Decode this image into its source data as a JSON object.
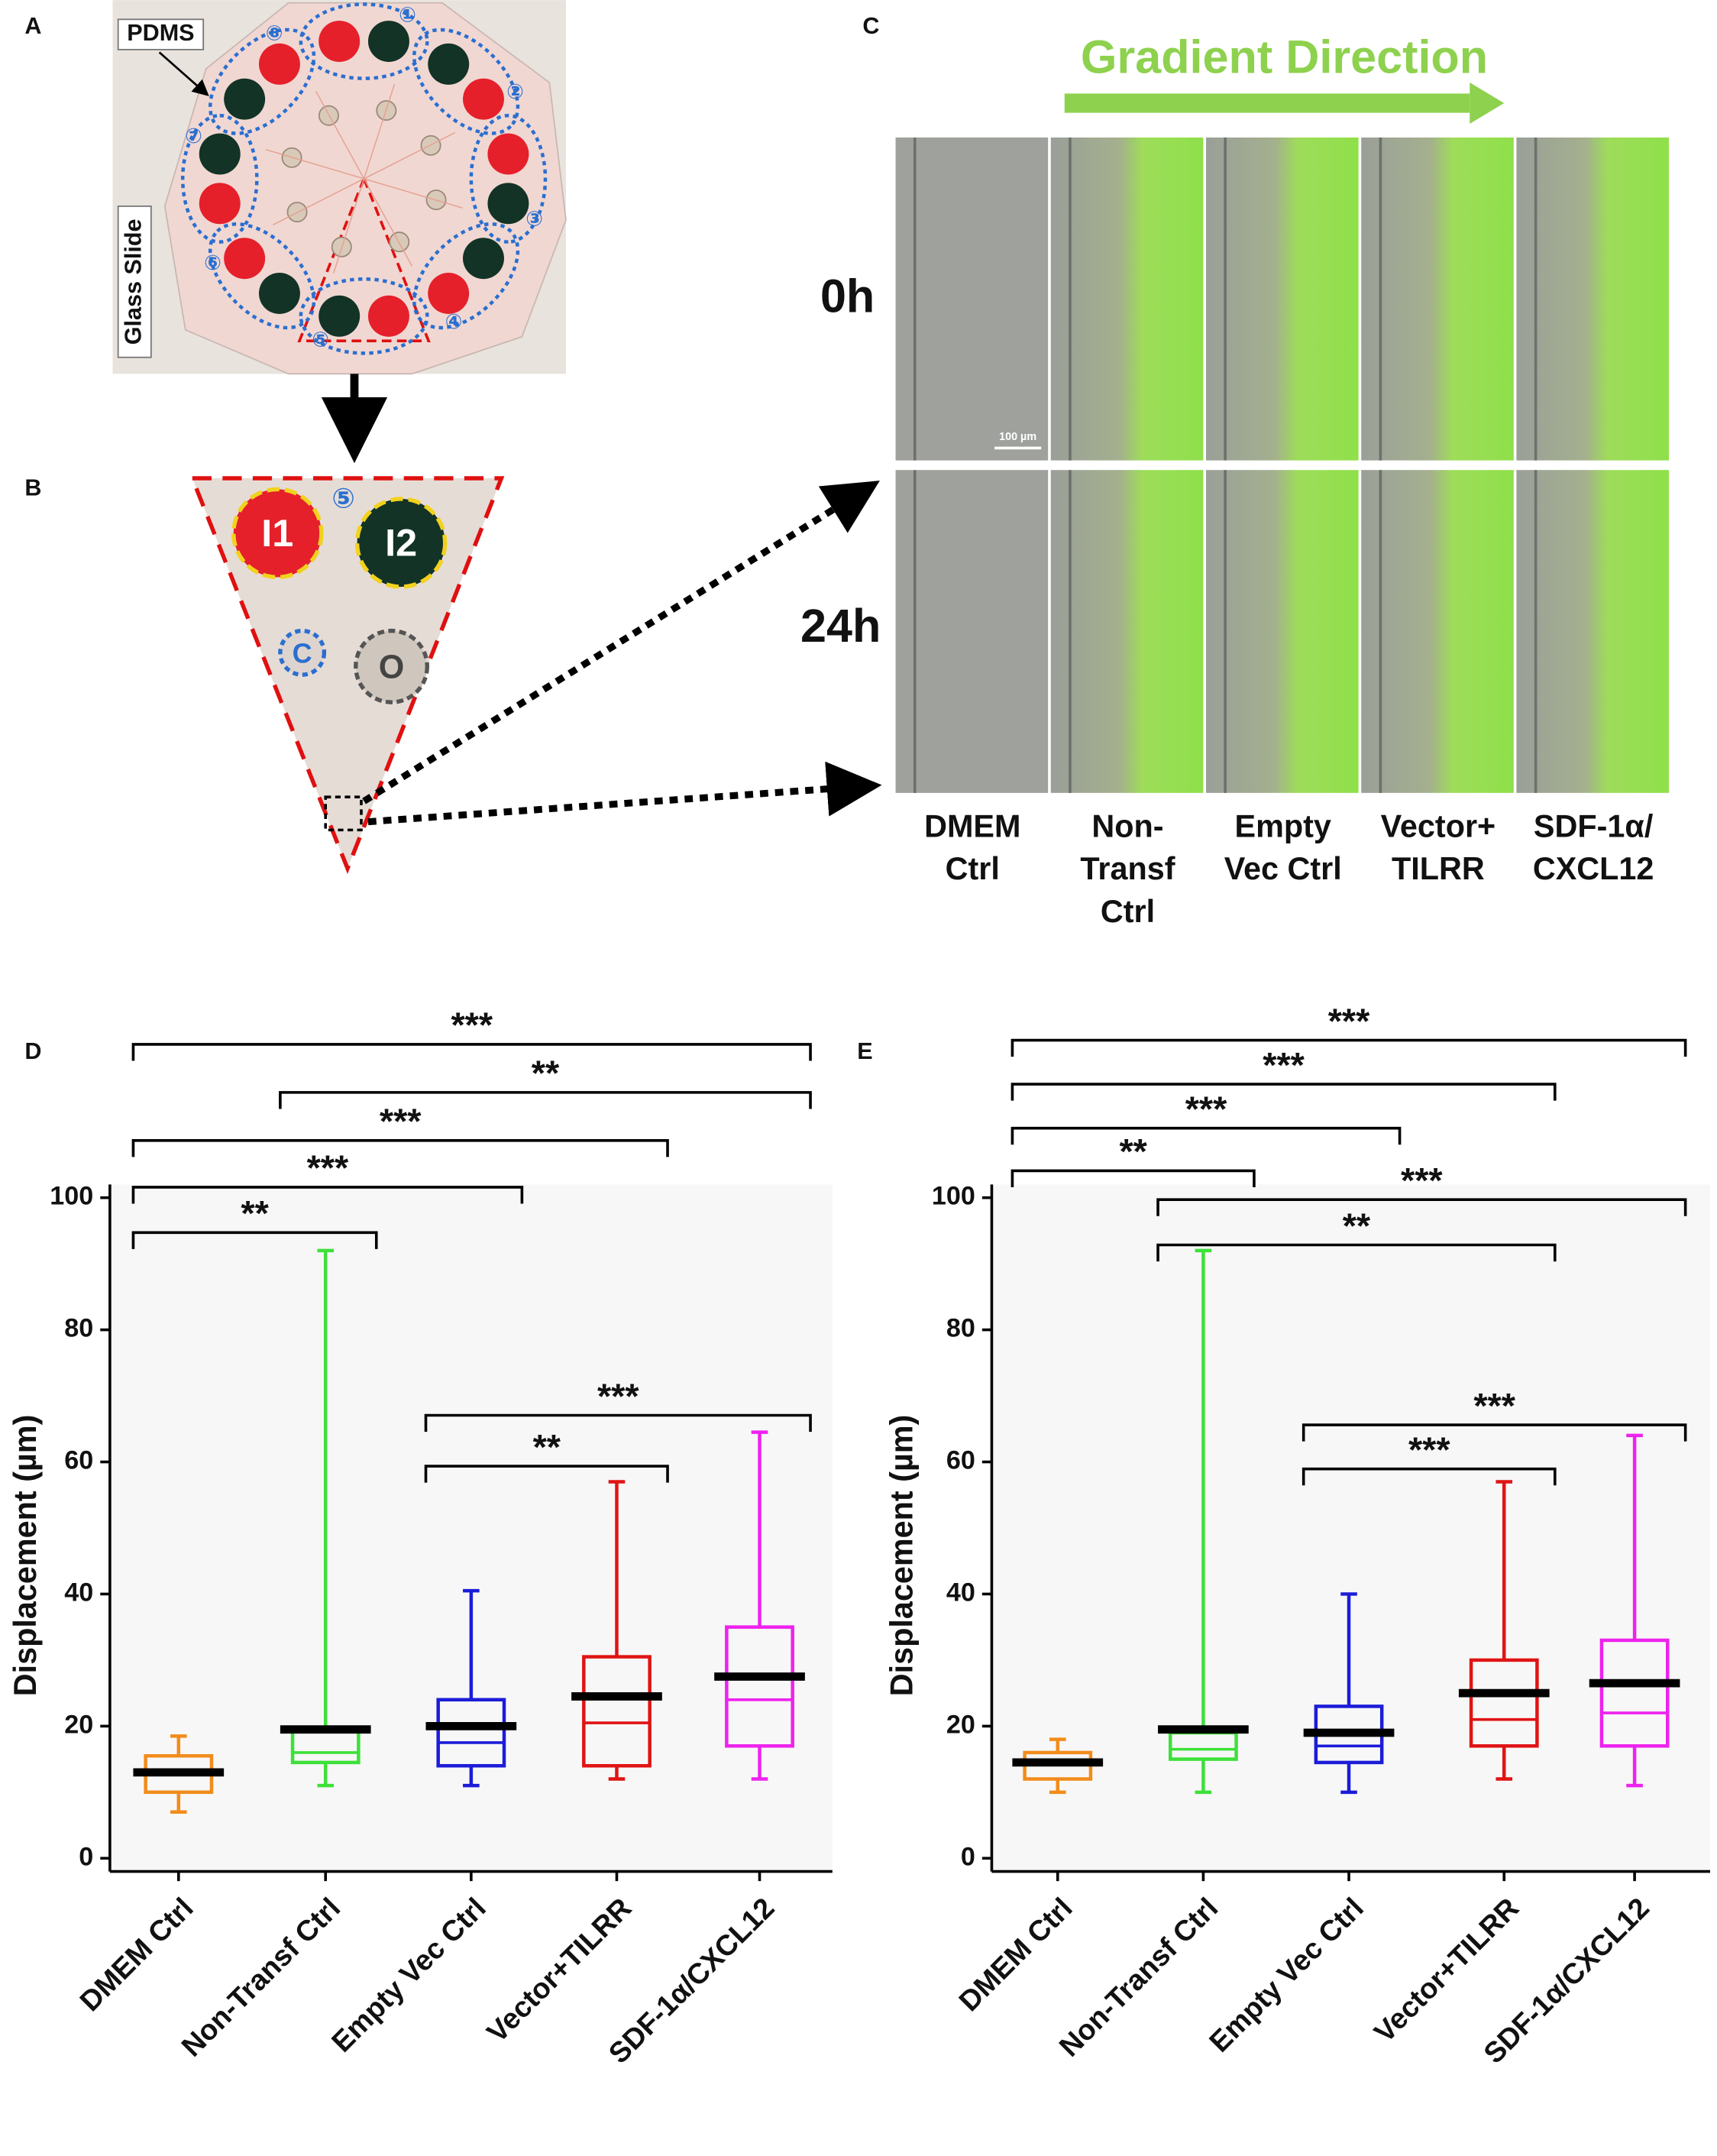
{
  "panel_labels": [
    "A",
    "B",
    "C",
    "D",
    "E"
  ],
  "panel_a": {
    "labels": [
      "PDMS",
      "Glass Slide"
    ],
    "wells": [
      "①",
      "②",
      "③",
      "④",
      "⑤",
      "⑥",
      "⑦",
      "⑧"
    ]
  },
  "panel_b": {
    "well_number": "⑤",
    "inlets": [
      "I1",
      "I2"
    ],
    "center": "C",
    "outlet": "O"
  },
  "panel_c": {
    "title": "Gradient Direction",
    "times": [
      "0h",
      "24h"
    ],
    "scale_bar": "100 µm",
    "conditions": [
      [
        "DMEM",
        "Ctrl"
      ],
      [
        "Non-",
        "Transf",
        "Ctrl"
      ],
      [
        "Empty",
        "Vec Ctrl"
      ],
      [
        "Vector+",
        "TILRR"
      ],
      [
        "SDF-1α/",
        "CXCL12"
      ]
    ]
  },
  "chart_data": [
    {
      "type": "box",
      "y_label": "Displacement (µm)",
      "categories": [
        "DMEM Ctrl",
        "Non-Transf Ctrl",
        "Empty Vec Ctrl",
        "Vector+TILRR",
        "SDF-1α/CXCL12"
      ],
      "ylim": [
        -2,
        102
      ],
      "yticks": [
        0,
        20,
        40,
        60,
        80,
        100
      ],
      "boxes": [
        {
          "color": "#f28c1c",
          "min": 7,
          "q1": 10,
          "median": 13,
          "q3": 15.5,
          "max": 18.5,
          "mean": 13
        },
        {
          "color": "#3ee03a",
          "min": 11,
          "q1": 14.5,
          "median": 16,
          "q3": 19.5,
          "max": 92,
          "mean": 19.5
        },
        {
          "color": "#1c1cd8",
          "min": 11,
          "q1": 14,
          "median": 17.5,
          "q3": 24,
          "max": 40.5,
          "mean": 20
        },
        {
          "color": "#e01414",
          "min": 12,
          "q1": 14,
          "median": 20.5,
          "q3": 30.5,
          "max": 57,
          "mean": 24.5
        },
        {
          "color": "#ee22ee",
          "min": 12,
          "q1": 17,
          "median": 24,
          "q3": 35,
          "max": 64.5,
          "mean": 27.5
        }
      ],
      "brackets": [
        {
          "pair": [
            0,
            4
          ],
          "label": "***"
        },
        {
          "pair": [
            1,
            4
          ],
          "label": "**"
        },
        {
          "pair": [
            0,
            3
          ],
          "label": "***"
        },
        {
          "pair": [
            0,
            2
          ],
          "label": "***"
        },
        {
          "pair": [
            0,
            1
          ],
          "label": "**"
        },
        {
          "pair": [
            2,
            4
          ],
          "label": "***"
        },
        {
          "pair": [
            2,
            3
          ],
          "label": "**"
        }
      ]
    },
    {
      "type": "box",
      "y_label": "Displacement (µm)",
      "categories": [
        "DMEM Ctrl",
        "Non-Transf Ctrl",
        "Empty Vec Ctrl",
        "Vector+TILRR",
        "SDF-1α/CXCL12"
      ],
      "ylim": [
        -2,
        102
      ],
      "yticks": [
        0,
        20,
        40,
        60,
        80,
        100
      ],
      "boxes": [
        {
          "color": "#f28c1c",
          "min": 10,
          "q1": 12,
          "median": 14.5,
          "q3": 16,
          "max": 18,
          "mean": 14.5
        },
        {
          "color": "#3ee03a",
          "min": 10,
          "q1": 15,
          "median": 16.5,
          "q3": 19,
          "max": 92,
          "mean": 19.5
        },
        {
          "color": "#1c1cd8",
          "min": 10,
          "q1": 14.5,
          "median": 17,
          "q3": 23,
          "max": 40,
          "mean": 19
        },
        {
          "color": "#e01414",
          "min": 12,
          "q1": 17,
          "median": 21,
          "q3": 30,
          "max": 57,
          "mean": 25
        },
        {
          "color": "#ee22ee",
          "min": 11,
          "q1": 17,
          "median": 22,
          "q3": 33,
          "max": 64,
          "mean": 26.5
        }
      ],
      "brackets": [
        {
          "pair": [
            0,
            4
          ],
          "label": "***"
        },
        {
          "pair": [
            0,
            3
          ],
          "label": "***"
        },
        {
          "pair": [
            0,
            2
          ],
          "label": "***"
        },
        {
          "pair": [
            0,
            1
          ],
          "label": "**"
        },
        {
          "pair": [
            1,
            4
          ],
          "label": "***"
        },
        {
          "pair": [
            1,
            3
          ],
          "label": "**"
        },
        {
          "pair": [
            2,
            4
          ],
          "label": "***"
        },
        {
          "pair": [
            2,
            3
          ],
          "label": "***"
        }
      ]
    }
  ]
}
